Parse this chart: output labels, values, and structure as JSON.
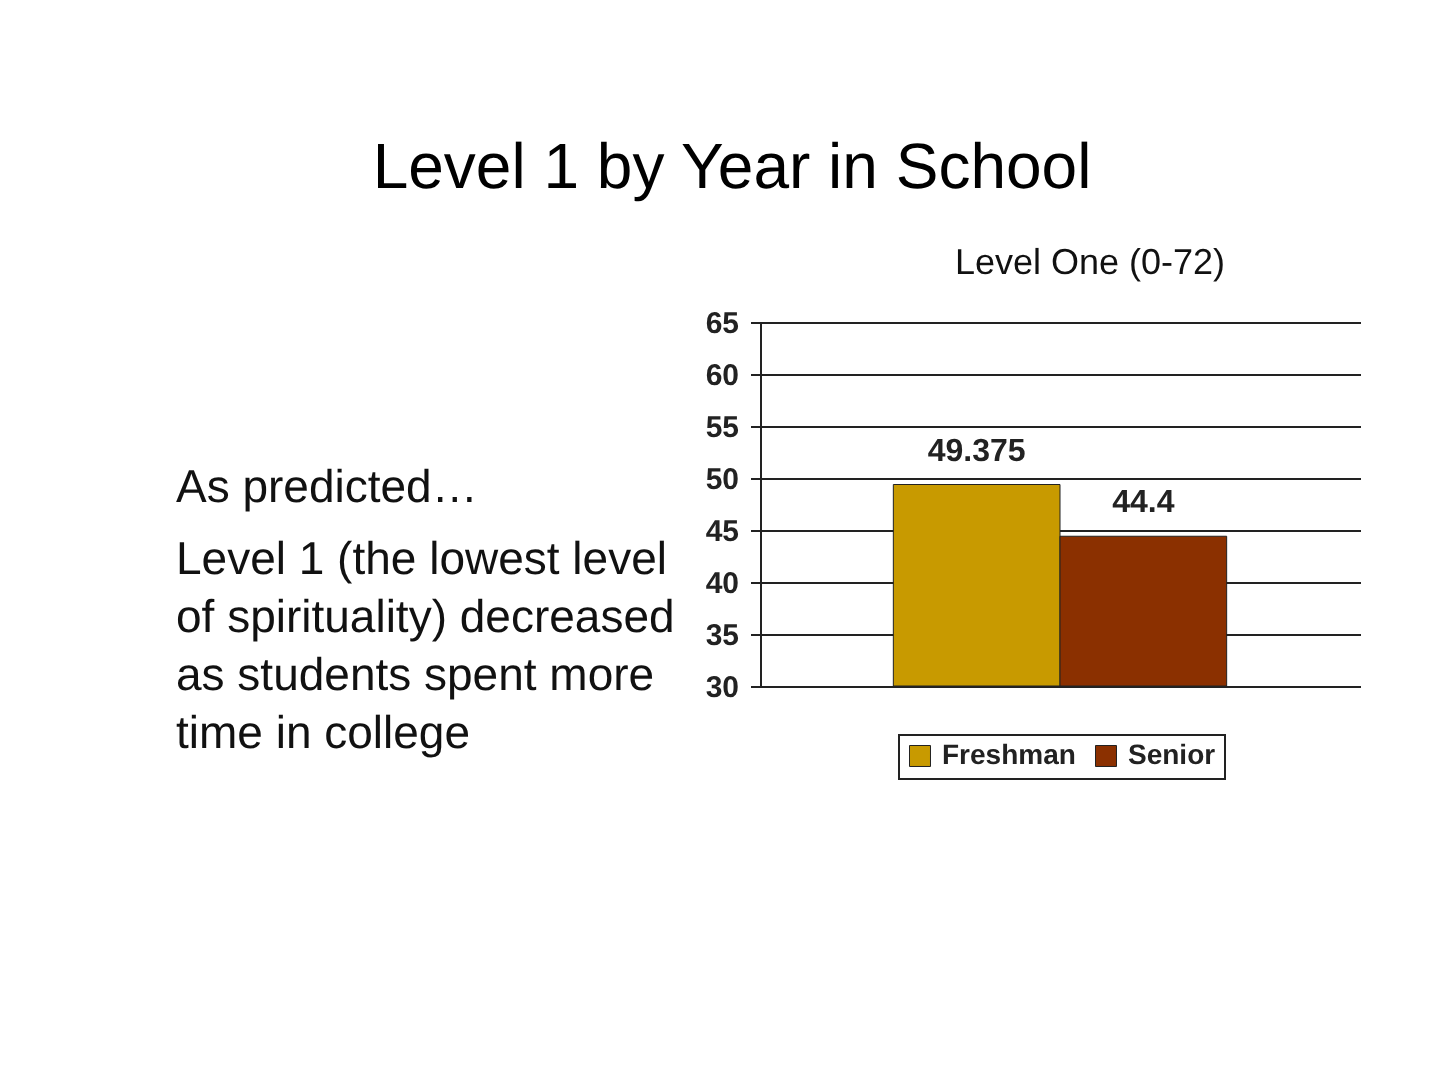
{
  "chart_data": {
    "type": "bar",
    "title": "Level 1 by Year in School",
    "subtitle": "Level One (0-72)",
    "categories": [
      null
    ],
    "series": [
      {
        "name": "Freshman",
        "color": "#c89a00",
        "values": [
          49.375
        ]
      },
      {
        "name": "Senior",
        "color": "#8b3000",
        "values": [
          44.4
        ]
      }
    ],
    "ylim": [
      30,
      65
    ],
    "yticks": [
      30,
      35,
      40,
      45,
      50,
      55,
      60,
      65
    ],
    "grid": "y",
    "legend": "bottom",
    "data_labels": true,
    "annotations": [
      "As predicted…",
      "Level 1 (the lowest level of spirituality) decreased as students spent more time in college"
    ]
  }
}
